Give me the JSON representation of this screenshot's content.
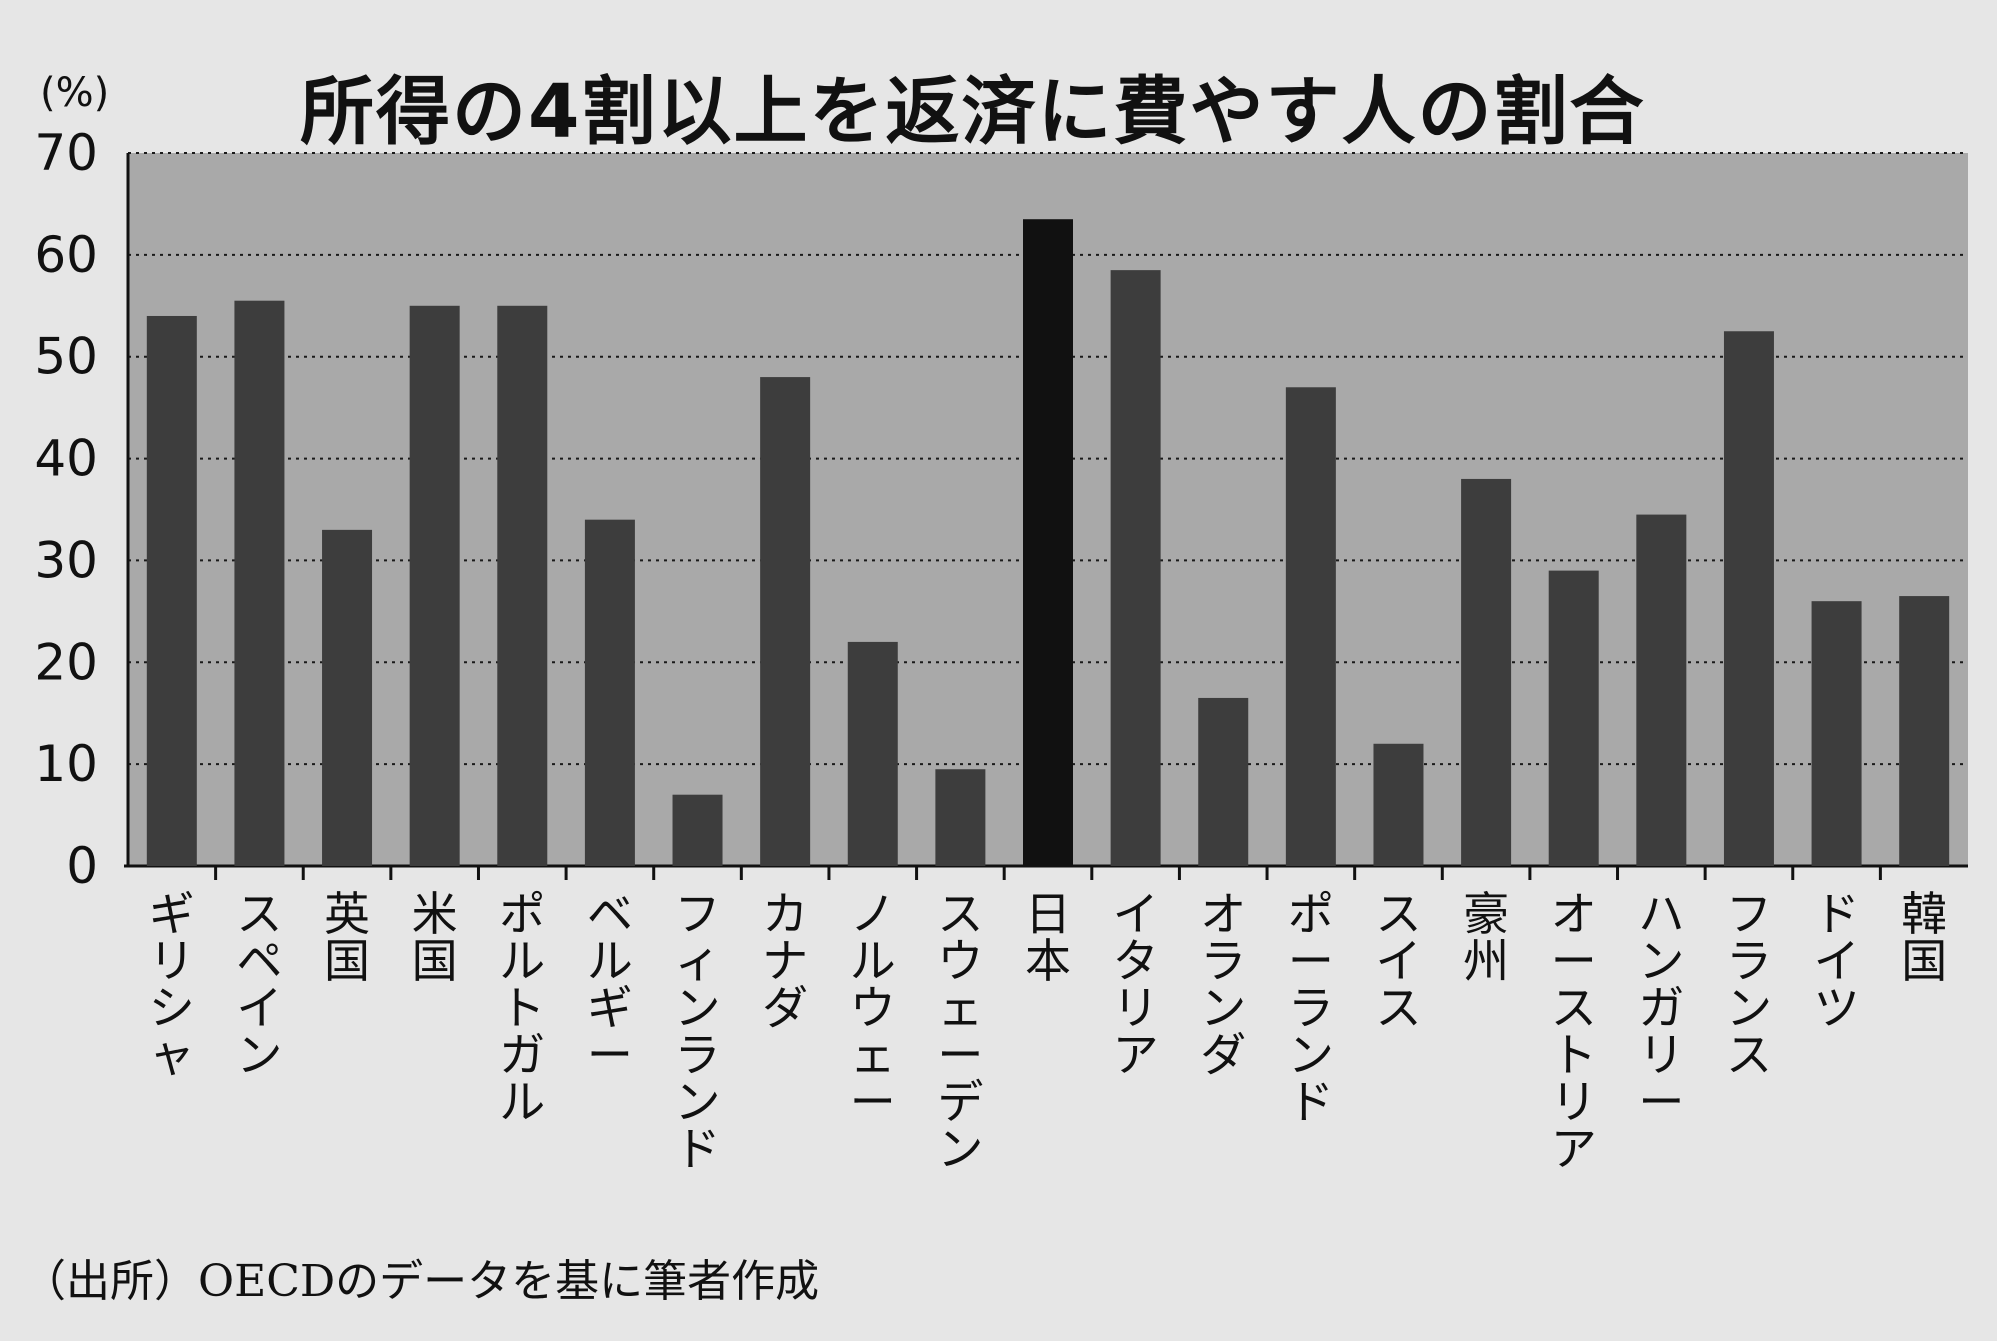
{
  "colors": {
    "background": "#e6e6e6",
    "plot_area": "#a9a9a9",
    "bar": "#3d3d3d",
    "highlight_bar": "#111111",
    "grid": "#1a1a1a"
  },
  "chart_data": {
    "type": "bar",
    "title": "所得の4割以上を返済に費やす人の割合",
    "ylabel": "(%)",
    "xlabel": "",
    "ylim": [
      0,
      70
    ],
    "yticks": [
      0,
      10,
      20,
      30,
      40,
      50,
      60,
      70
    ],
    "grid": true,
    "highlight_category": "日本",
    "categories": [
      "ギリシャ",
      "スペイン",
      "英国",
      "米国",
      "ポルトガル",
      "ベルギー",
      "フィンランド",
      "カナダ",
      "ノルウェー",
      "スウェーデン",
      "日本",
      "イタリア",
      "オランダ",
      "ポーランド",
      "スイス",
      "豪州",
      "オーストリア",
      "ハンガリー",
      "フランス",
      "ドイツ",
      "韓国"
    ],
    "values": [
      54,
      55.5,
      33,
      55,
      55,
      34,
      7,
      48,
      22,
      9.5,
      63.5,
      58.5,
      16.5,
      47,
      12,
      38,
      29,
      34.5,
      52.5,
      26,
      26.5
    ]
  },
  "source": "（出所）OECDのデータを基に筆者作成"
}
